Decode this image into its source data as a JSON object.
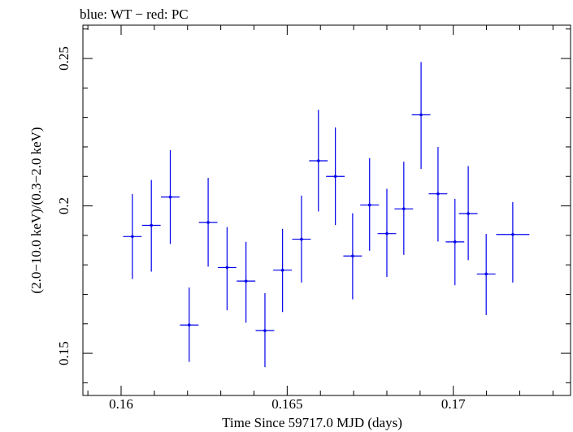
{
  "chart_data": {
    "type": "scatter",
    "title": "blue: WT − red: PC",
    "xlabel": "Time Since 59717.0 MJD (days)",
    "ylabel": "(2.0−10.0 keV)/(0.3−2.0 keV)",
    "xlim": [
      0.15885,
      0.17353
    ],
    "ylim": [
      0.1357,
      0.2613
    ],
    "x_ticks": [
      {
        "value": 0.16,
        "label": "0.16"
      },
      {
        "value": 0.165,
        "label": "0.165"
      },
      {
        "value": 0.17,
        "label": "0.17"
      }
    ],
    "y_ticks": [
      {
        "value": 0.15,
        "label": "0.15"
      },
      {
        "value": 0.2,
        "label": "0.2"
      },
      {
        "value": 0.25,
        "label": "0.25"
      }
    ],
    "grid": false,
    "legend": "none",
    "series": [
      {
        "color": "#0000ee",
        "points": [
          {
            "x": 0.16034,
            "y": 0.1896,
            "xerr": 0.00028,
            "y_low": 0.1752,
            "y_high": 0.204
          },
          {
            "x": 0.16091,
            "y": 0.1934,
            "xerr": 0.00028,
            "y_low": 0.1777,
            "y_high": 0.2088
          },
          {
            "x": 0.16148,
            "y": 0.203,
            "xerr": 0.00028,
            "y_low": 0.1871,
            "y_high": 0.2189
          },
          {
            "x": 0.16205,
            "y": 0.1596,
            "xerr": 0.00028,
            "y_low": 0.1471,
            "y_high": 0.1723
          },
          {
            "x": 0.16262,
            "y": 0.1944,
            "xerr": 0.00028,
            "y_low": 0.1794,
            "y_high": 0.2095
          },
          {
            "x": 0.16319,
            "y": 0.1791,
            "xerr": 0.00028,
            "y_low": 0.1646,
            "y_high": 0.1928
          },
          {
            "x": 0.16376,
            "y": 0.1745,
            "xerr": 0.00028,
            "y_low": 0.1604,
            "y_high": 0.1878
          },
          {
            "x": 0.16433,
            "y": 0.1577,
            "xerr": 0.00028,
            "y_low": 0.1453,
            "y_high": 0.1704
          },
          {
            "x": 0.16486,
            "y": 0.1782,
            "xerr": 0.00028,
            "y_low": 0.164,
            "y_high": 0.1922
          },
          {
            "x": 0.16543,
            "y": 0.1887,
            "xerr": 0.00028,
            "y_low": 0.174,
            "y_high": 0.2035
          },
          {
            "x": 0.16594,
            "y": 0.2153,
            "xerr": 0.00028,
            "y_low": 0.1981,
            "y_high": 0.2326
          },
          {
            "x": 0.16645,
            "y": 0.21,
            "xerr": 0.00028,
            "y_low": 0.1935,
            "y_high": 0.2266
          },
          {
            "x": 0.16697,
            "y": 0.183,
            "xerr": 0.00028,
            "y_low": 0.1683,
            "y_high": 0.1975
          },
          {
            "x": 0.16748,
            "y": 0.2003,
            "xerr": 0.00028,
            "y_low": 0.1848,
            "y_high": 0.2162
          },
          {
            "x": 0.168,
            "y": 0.1906,
            "xerr": 0.00028,
            "y_low": 0.1759,
            "y_high": 0.2058
          },
          {
            "x": 0.16851,
            "y": 0.199,
            "xerr": 0.00028,
            "y_low": 0.1834,
            "y_high": 0.215
          },
          {
            "x": 0.16903,
            "y": 0.2309,
            "xerr": 0.00028,
            "y_low": 0.2125,
            "y_high": 0.2488
          },
          {
            "x": 0.16954,
            "y": 0.2041,
            "xerr": 0.00028,
            "y_low": 0.1879,
            "y_high": 0.22
          },
          {
            "x": 0.17005,
            "y": 0.1878,
            "xerr": 0.00028,
            "y_low": 0.1731,
            "y_high": 0.2024
          },
          {
            "x": 0.17045,
            "y": 0.1974,
            "xerr": 0.00028,
            "y_low": 0.1816,
            "y_high": 0.2135
          },
          {
            "x": 0.17099,
            "y": 0.1769,
            "xerr": 0.00028,
            "y_low": 0.163,
            "y_high": 0.1905
          },
          {
            "x": 0.17179,
            "y": 0.1903,
            "xerr": 0.0005,
            "y_low": 0.174,
            "y_high": 0.2013
          }
        ]
      }
    ]
  }
}
